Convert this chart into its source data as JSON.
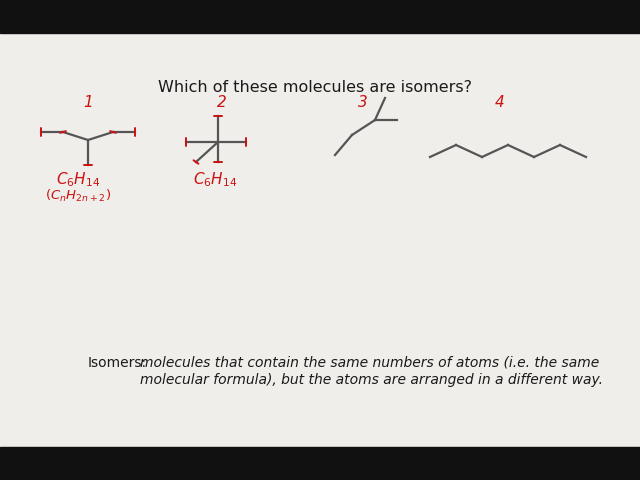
{
  "bg_color": "#f0eeea",
  "black_bar_color": "#111111",
  "title": "Which of these molecules are isomers?",
  "title_color": "#1a1a1a",
  "title_fontsize": 11.5,
  "red_color": "#cc1111",
  "line_color": "#555555",
  "line_width": 1.6,
  "label1": "1",
  "label2": "2",
  "label3": "3",
  "label4": "4",
  "formula1_line1": "$C_6H_{14}$",
  "formula1_line2": "$(C_nH_{2n+2})$",
  "formula2": "$C_6H_{14}$",
  "isomers_bold": "Isomers:",
  "isomers_italic": " molecules that contain the same numbers of atoms (i.e. the same",
  "isomers_italic2": "      molecular formula), but the atoms are arranged in a different way."
}
